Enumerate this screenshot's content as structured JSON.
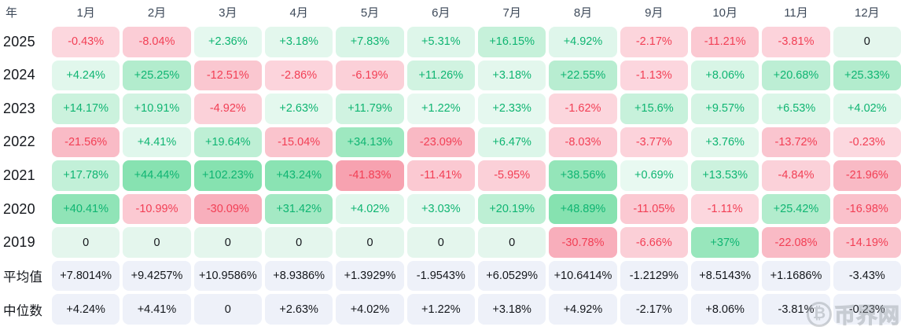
{
  "chart_data": {
    "type": "heatmap",
    "title": "",
    "xlabel": "",
    "ylabel": "年",
    "x_labels": [
      "1月",
      "2月",
      "3月",
      "4月",
      "5月",
      "6月",
      "7月",
      "8月",
      "9月",
      "10月",
      "11月",
      "12月"
    ],
    "y_labels": [
      "2025",
      "2024",
      "2023",
      "2022",
      "2021",
      "2020",
      "2019",
      "平均值",
      "中位数"
    ],
    "unit": "%",
    "values": [
      [
        -0.43,
        -8.04,
        2.36,
        3.18,
        7.83,
        5.31,
        16.15,
        4.92,
        -2.17,
        -11.21,
        -3.81,
        0
      ],
      [
        4.24,
        25.25,
        -12.51,
        -2.86,
        -6.19,
        11.26,
        3.18,
        22.55,
        -1.13,
        8.06,
        20.68,
        25.33
      ],
      [
        14.17,
        10.91,
        -4.92,
        2.63,
        11.79,
        1.22,
        2.33,
        -1.62,
        15.6,
        9.57,
        6.53,
        4.02
      ],
      [
        -21.56,
        4.41,
        19.64,
        -15.04,
        34.13,
        -23.09,
        6.47,
        -8.03,
        -3.77,
        3.76,
        -13.72,
        -0.23
      ],
      [
        17.78,
        44.44,
        102.23,
        43.24,
        -41.83,
        -11.41,
        -5.95,
        38.56,
        0.69,
        13.53,
        -4.84,
        -21.96
      ],
      [
        40.41,
        -10.99,
        -30.09,
        31.42,
        4.02,
        3.03,
        20.19,
        48.89,
        -11.05,
        -1.11,
        25.42,
        -16.98
      ],
      [
        0,
        0,
        0,
        0,
        0,
        0,
        0,
        -30.78,
        -6.66,
        37,
        -22.08,
        -14.19
      ],
      [
        7.8014,
        9.4257,
        10.9586,
        8.9386,
        1.3929,
        -1.9543,
        6.0529,
        10.6414,
        -1.2129,
        8.5143,
        1.1686,
        -3.43
      ],
      [
        4.24,
        4.41,
        0,
        2.63,
        4.02,
        1.22,
        3.18,
        4.92,
        -2.17,
        8.06,
        -3.81,
        -0.23
      ]
    ],
    "legend": "none",
    "color_scale": {
      "positive_max": "#86e2b0",
      "positive_min": "#eaf9f2",
      "negative_max": "#f7a2b0",
      "negative_min": "#fcd8df",
      "zero": "#e4f6ed",
      "stat_row": "#eef1f9"
    }
  },
  "table": {
    "year_label": "年",
    "months": [
      "1月",
      "2月",
      "3月",
      "4月",
      "5月",
      "6月",
      "7月",
      "8月",
      "9月",
      "10月",
      "11月",
      "12月"
    ],
    "rows": [
      {
        "label": "2025",
        "stat": false,
        "values": [
          "-0.43%",
          "-8.04%",
          "+2.36%",
          "+3.18%",
          "+7.83%",
          "+5.31%",
          "+16.15%",
          "+4.92%",
          "-2.17%",
          "-11.21%",
          "-3.81%",
          "0"
        ]
      },
      {
        "label": "2024",
        "stat": false,
        "values": [
          "+4.24%",
          "+25.25%",
          "-12.51%",
          "-2.86%",
          "-6.19%",
          "+11.26%",
          "+3.18%",
          "+22.55%",
          "-1.13%",
          "+8.06%",
          "+20.68%",
          "+25.33%"
        ]
      },
      {
        "label": "2023",
        "stat": false,
        "values": [
          "+14.17%",
          "+10.91%",
          "-4.92%",
          "+2.63%",
          "+11.79%",
          "+1.22%",
          "+2.33%",
          "-1.62%",
          "+15.6%",
          "+9.57%",
          "+6.53%",
          "+4.02%"
        ]
      },
      {
        "label": "2022",
        "stat": false,
        "values": [
          "-21.56%",
          "+4.41%",
          "+19.64%",
          "-15.04%",
          "+34.13%",
          "-23.09%",
          "+6.47%",
          "-8.03%",
          "-3.77%",
          "+3.76%",
          "-13.72%",
          "-0.23%"
        ]
      },
      {
        "label": "2021",
        "stat": false,
        "values": [
          "+17.78%",
          "+44.44%",
          "+102.23%",
          "+43.24%",
          "-41.83%",
          "-11.41%",
          "-5.95%",
          "+38.56%",
          "+0.69%",
          "+13.53%",
          "-4.84%",
          "-21.96%"
        ]
      },
      {
        "label": "2020",
        "stat": false,
        "values": [
          "+40.41%",
          "-10.99%",
          "-30.09%",
          "+31.42%",
          "+4.02%",
          "+3.03%",
          "+20.19%",
          "+48.89%",
          "-11.05%",
          "-1.11%",
          "+25.42%",
          "-16.98%"
        ]
      },
      {
        "label": "2019",
        "stat": false,
        "values": [
          "0",
          "0",
          "0",
          "0",
          "0",
          "0",
          "0",
          "-30.78%",
          "-6.66%",
          "+37%",
          "-22.08%",
          "-14.19%"
        ]
      },
      {
        "label": "平均值",
        "stat": true,
        "values": [
          "+7.8014%",
          "+9.4257%",
          "+10.9586%",
          "+8.9386%",
          "+1.3929%",
          "-1.9543%",
          "+6.0529%",
          "+10.6414%",
          "-1.2129%",
          "+8.5143%",
          "+1.1686%",
          "-3.43%"
        ]
      },
      {
        "label": "中位数",
        "stat": true,
        "values": [
          "+4.24%",
          "+4.41%",
          "0",
          "+2.63%",
          "+4.02%",
          "+1.22%",
          "+3.18%",
          "+4.92%",
          "-2.17%",
          "+8.06%",
          "-3.81%",
          "-0.23%"
        ]
      }
    ]
  },
  "colors": {
    "positive_text": "#0fb572",
    "negative_text": "#f23f55",
    "zero_text": "#14171c",
    "stat_text": "#14171c",
    "stat_bg": "#eef1f9",
    "zero_bg": "#e4f6ed",
    "header_text": "#3e4a5a"
  },
  "watermark": {
    "icon": "bitcoin-circle-icon",
    "symbol": "₿",
    "text": "币界网"
  }
}
